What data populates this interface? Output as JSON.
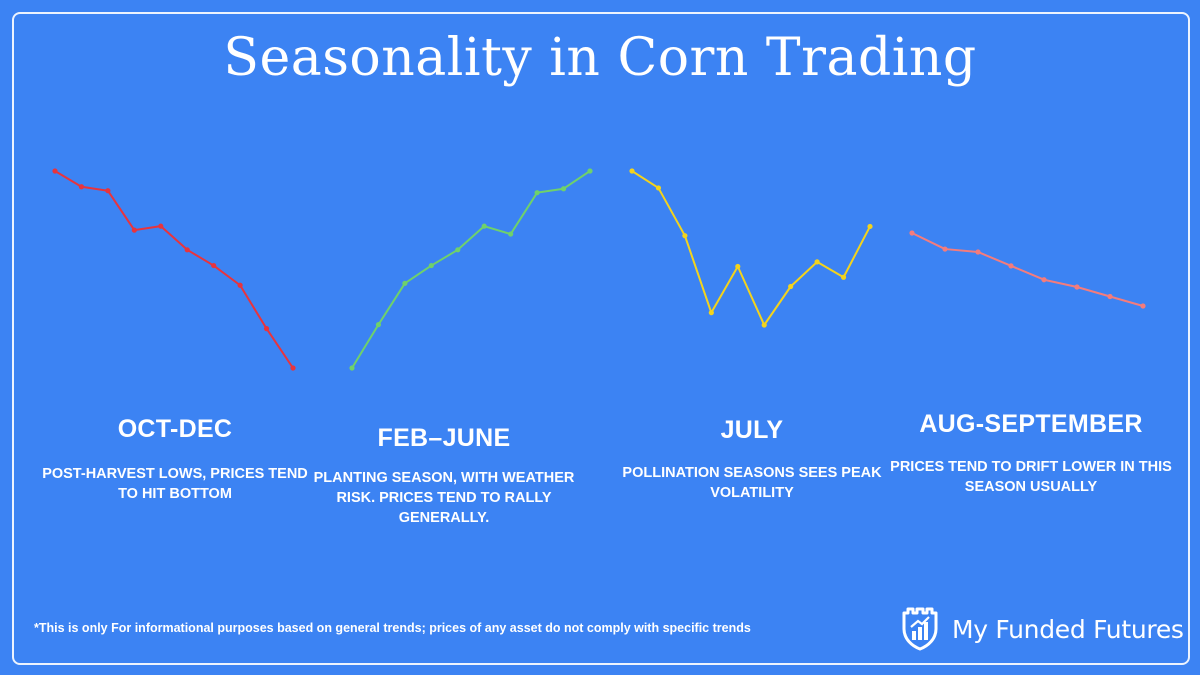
{
  "title": "Seasonality in Corn Trading",
  "chart_data": {
    "type": "line",
    "title": "Seasonality in Corn Trading",
    "xlabel": "",
    "ylabel": "",
    "ylim": [
      0,
      100
    ],
    "series": [
      {
        "name": "OCT-DEC",
        "color": "#e8343d",
        "description": "POST-HARVEST LOWS, PRICES TEND TO HIT BOTTOM",
        "values": [
          100,
          92,
          90,
          70,
          72,
          60,
          52,
          42,
          20,
          0
        ]
      },
      {
        "name": "FEB–JUNE",
        "color": "#6fd16b",
        "description": "PLANTING SEASON, WITH WEATHER RISK. PRICES TEND TO RALLY GENERALLY.",
        "values": [
          0,
          22,
          43,
          52,
          60,
          72,
          68,
          89,
          91,
          100
        ]
      },
      {
        "name": "JULY",
        "color": "#f3d31c",
        "description": "POLLINATION SEASONS SEES PEAK VOLATILITY",
        "values": [
          100,
          89,
          58,
          8,
          38,
          0,
          25,
          41,
          31,
          64
        ]
      },
      {
        "name": "AUG-SEPTEMBER",
        "color": "#f47c7c",
        "description": "PRICES TEND TO DRIFT LOWER IN THIS SEASON USUALLY",
        "values": [
          100,
          78,
          74,
          55,
          36,
          26,
          13,
          0
        ]
      }
    ]
  },
  "footnote": "*This is only For informational purposes based on general trends; prices of any asset do not comply with specific trends",
  "logo": {
    "text": "My Funded Futures",
    "icon": "shield-chart-icon"
  }
}
